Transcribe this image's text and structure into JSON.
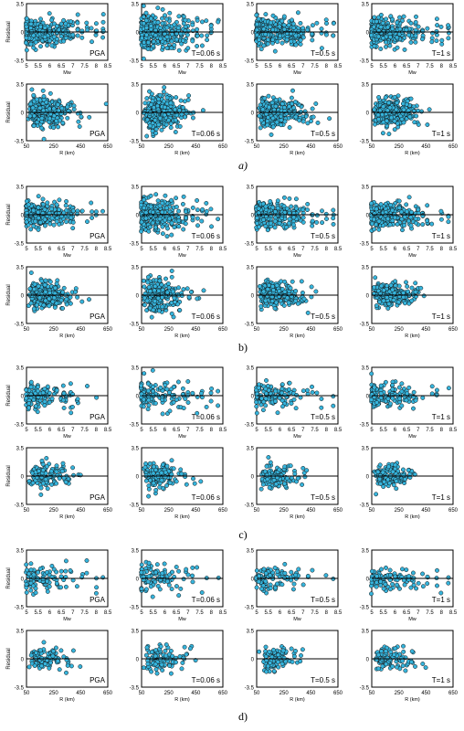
{
  "chart_data": {
    "type": "scatter",
    "panel_labels": [
      "PGA",
      "T=0.06 s",
      "T=0.5 s",
      "T=1 s"
    ],
    "magnitude_axis": {
      "xlabel": "Mw",
      "xlim": [
        5,
        8.5
      ],
      "xticks": [
        "5",
        "5.5",
        "6",
        "6.5",
        "7",
        "7.5",
        "8",
        "8.5"
      ]
    },
    "distance_axis": {
      "xlabel": "R (km)",
      "xlim": [
        50,
        650
      ],
      "xticks": [
        "50",
        "250",
        "450",
        "650"
      ]
    },
    "ylabel": "Residual",
    "ylim": [
      -3.5,
      3.5
    ],
    "yticks": [
      "3.5",
      "0",
      "-3.5"
    ],
    "grid": false,
    "marker_color": "#36b4dc",
    "marker_edge_color": "#111111",
    "groups": [
      {
        "caption": "a)",
        "points_per_panel": 320,
        "magnitude_spread": 1.0,
        "distance_spread": 1.0
      },
      {
        "caption": "b)",
        "points_per_panel": 260,
        "magnitude_spread": 0.9,
        "distance_spread": 0.9
      },
      {
        "caption": "c)",
        "points_per_panel": 130,
        "magnitude_spread": 0.95,
        "distance_spread": 0.85
      },
      {
        "caption": "d)",
        "points_per_panel": 100,
        "magnitude_spread": 0.85,
        "distance_spread": 0.8
      }
    ]
  }
}
